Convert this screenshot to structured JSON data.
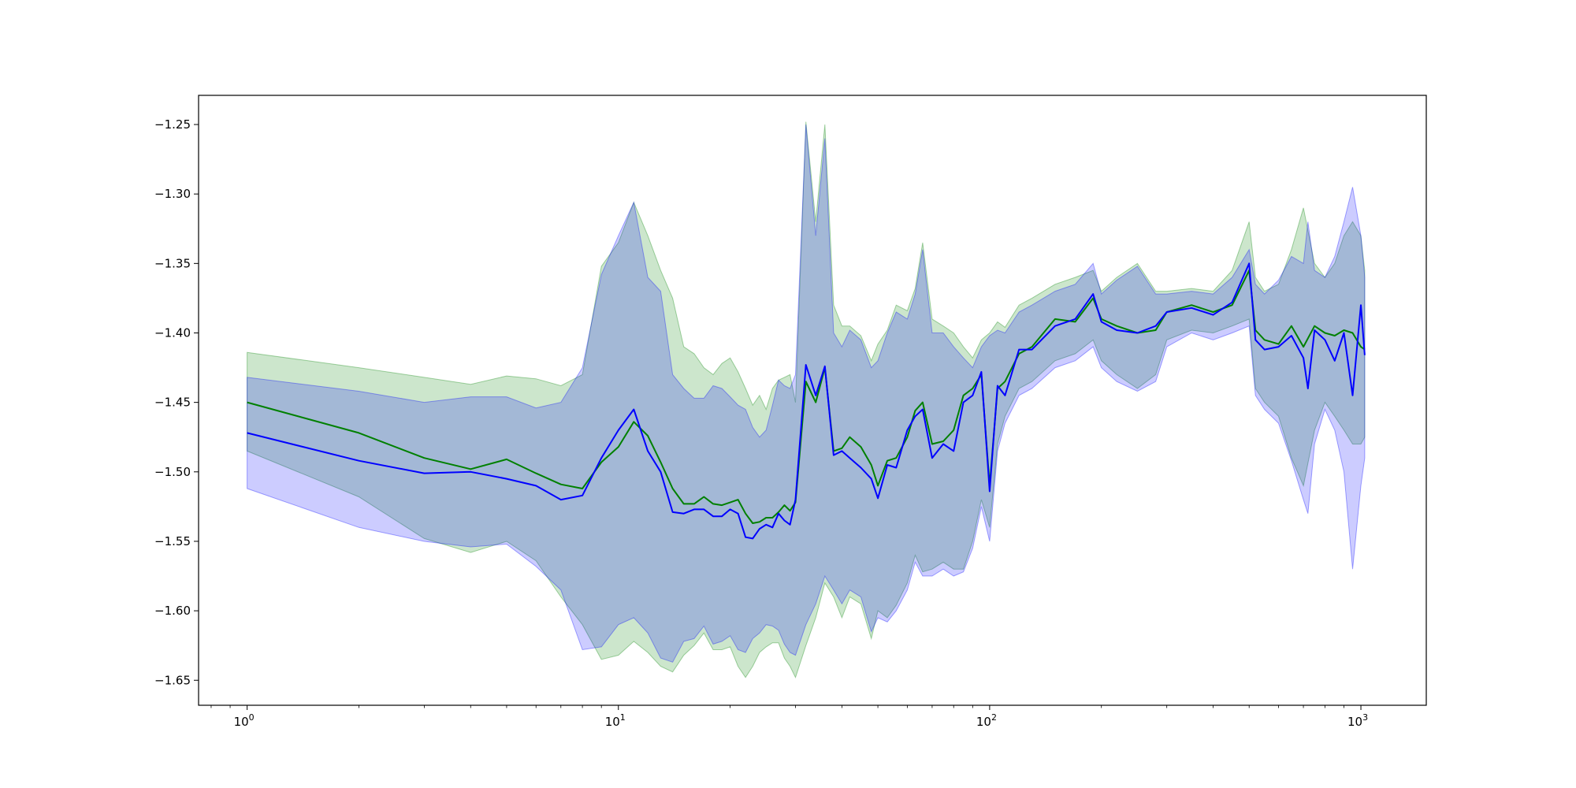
{
  "chart_data": {
    "type": "line",
    "title": "",
    "xlabel": "",
    "ylabel": "",
    "x_scale": "log",
    "xlim": [
      0.74,
      1500
    ],
    "ylim": [
      -1.668,
      -1.229
    ],
    "grid": false,
    "legend": "none",
    "x_ticks": [
      {
        "base": "10",
        "exp": "0",
        "value": 1
      },
      {
        "base": "10",
        "exp": "1",
        "value": 10
      },
      {
        "base": "10",
        "exp": "2",
        "value": 100
      },
      {
        "base": "10",
        "exp": "3",
        "value": 1000
      }
    ],
    "y_ticks": [
      {
        "label": "−1.25",
        "value": -1.25
      },
      {
        "label": "−1.30",
        "value": -1.3
      },
      {
        "label": "−1.35",
        "value": -1.35
      },
      {
        "label": "−1.40",
        "value": -1.4
      },
      {
        "label": "−1.45",
        "value": -1.45
      },
      {
        "label": "−1.50",
        "value": -1.5
      },
      {
        "label": "−1.55",
        "value": -1.55
      },
      {
        "label": "−1.60",
        "value": -1.6
      },
      {
        "label": "−1.65",
        "value": -1.65
      }
    ],
    "series": [
      {
        "color": "#008000",
        "band_color": "#008000",
        "band_opacity": 0.2,
        "x": [
          1,
          2,
          3,
          4,
          5,
          6,
          7,
          8,
          9,
          10,
          11,
          12,
          13,
          14,
          15,
          16,
          17,
          18,
          19,
          20,
          21,
          22,
          23,
          24,
          25,
          26,
          27,
          28,
          29,
          30,
          32,
          34,
          36,
          38,
          40,
          42,
          45,
          48,
          50,
          53,
          56,
          60,
          63,
          66,
          70,
          75,
          80,
          85,
          90,
          95,
          100,
          105,
          110,
          120,
          130,
          150,
          170,
          190,
          200,
          220,
          250,
          280,
          300,
          350,
          400,
          450,
          500,
          520,
          550,
          600,
          650,
          700,
          750,
          800,
          850,
          900,
          950,
          1000,
          1024
        ],
        "y": [
          -1.45,
          -1.472,
          -1.49,
          -1.498,
          -1.491,
          -1.501,
          -1.509,
          -1.512,
          -1.493,
          -1.482,
          -1.464,
          -1.474,
          -1.493,
          -1.512,
          -1.523,
          -1.523,
          -1.518,
          -1.523,
          -1.524,
          -1.522,
          -1.52,
          -1.53,
          -1.537,
          -1.536,
          -1.533,
          -1.533,
          -1.529,
          -1.524,
          -1.528,
          -1.522,
          -1.435,
          -1.45,
          -1.425,
          -1.485,
          -1.483,
          -1.475,
          -1.482,
          -1.495,
          -1.51,
          -1.492,
          -1.49,
          -1.475,
          -1.456,
          -1.45,
          -1.48,
          -1.478,
          -1.47,
          -1.445,
          -1.44,
          -1.43,
          -1.51,
          -1.44,
          -1.435,
          -1.415,
          -1.41,
          -1.39,
          -1.392,
          -1.375,
          -1.39,
          -1.395,
          -1.4,
          -1.398,
          -1.385,
          -1.38,
          -1.385,
          -1.38,
          -1.355,
          -1.398,
          -1.405,
          -1.408,
          -1.395,
          -1.41,
          -1.395,
          -1.4,
          -1.402,
          -1.398,
          -1.4,
          -1.41,
          -1.412
        ],
        "upper": [
          -1.414,
          -1.425,
          -1.432,
          -1.437,
          -1.431,
          -1.433,
          -1.438,
          -1.43,
          -1.352,
          -1.335,
          -1.306,
          -1.33,
          -1.355,
          -1.375,
          -1.41,
          -1.415,
          -1.425,
          -1.43,
          -1.422,
          -1.418,
          -1.428,
          -1.44,
          -1.452,
          -1.445,
          -1.455,
          -1.44,
          -1.434,
          -1.432,
          -1.43,
          -1.45,
          -1.248,
          -1.32,
          -1.25,
          -1.38,
          -1.395,
          -1.395,
          -1.402,
          -1.42,
          -1.408,
          -1.398,
          -1.38,
          -1.384,
          -1.368,
          -1.335,
          -1.39,
          -1.395,
          -1.4,
          -1.41,
          -1.418,
          -1.405,
          -1.4,
          -1.392,
          -1.396,
          -1.38,
          -1.375,
          -1.365,
          -1.36,
          -1.355,
          -1.37,
          -1.36,
          -1.35,
          -1.37,
          -1.37,
          -1.368,
          -1.37,
          -1.355,
          -1.32,
          -1.36,
          -1.37,
          -1.365,
          -1.34,
          -1.31,
          -1.35,
          -1.36,
          -1.35,
          -1.33,
          -1.32,
          -1.33,
          -1.355
        ],
        "lower": [
          -1.485,
          -1.518,
          -1.548,
          -1.558,
          -1.55,
          -1.564,
          -1.59,
          -1.61,
          -1.635,
          -1.632,
          -1.622,
          -1.63,
          -1.64,
          -1.644,
          -1.632,
          -1.625,
          -1.616,
          -1.628,
          -1.628,
          -1.626,
          -1.64,
          -1.648,
          -1.64,
          -1.63,
          -1.626,
          -1.623,
          -1.623,
          -1.634,
          -1.64,
          -1.648,
          -1.625,
          -1.605,
          -1.58,
          -1.59,
          -1.605,
          -1.59,
          -1.595,
          -1.62,
          -1.6,
          -1.605,
          -1.596,
          -1.58,
          -1.56,
          -1.572,
          -1.57,
          -1.565,
          -1.57,
          -1.57,
          -1.55,
          -1.52,
          -1.54,
          -1.48,
          -1.46,
          -1.44,
          -1.435,
          -1.42,
          -1.415,
          -1.405,
          -1.42,
          -1.43,
          -1.44,
          -1.43,
          -1.405,
          -1.398,
          -1.4,
          -1.395,
          -1.39,
          -1.44,
          -1.45,
          -1.46,
          -1.49,
          -1.51,
          -1.47,
          -1.45,
          -1.46,
          -1.47,
          -1.48,
          -1.48,
          -1.475
        ]
      },
      {
        "color": "#0000ff",
        "band_color": "#0000ff",
        "band_opacity": 0.2,
        "x": [
          1,
          2,
          3,
          4,
          5,
          6,
          7,
          8,
          9,
          10,
          11,
          12,
          13,
          14,
          15,
          16,
          17,
          18,
          19,
          20,
          21,
          22,
          23,
          24,
          25,
          26,
          27,
          28,
          29,
          30,
          32,
          34,
          36,
          38,
          40,
          42,
          45,
          48,
          50,
          53,
          56,
          60,
          63,
          66,
          70,
          75,
          80,
          85,
          90,
          95,
          100,
          105,
          110,
          120,
          130,
          150,
          170,
          190,
          200,
          220,
          250,
          280,
          300,
          350,
          400,
          450,
          500,
          520,
          550,
          600,
          650,
          700,
          720,
          750,
          800,
          850,
          900,
          950,
          1000,
          1024
        ],
        "y": [
          -1.472,
          -1.492,
          -1.501,
          -1.5,
          -1.505,
          -1.51,
          -1.52,
          -1.517,
          -1.49,
          -1.47,
          -1.455,
          -1.485,
          -1.5,
          -1.529,
          -1.53,
          -1.527,
          -1.527,
          -1.532,
          -1.532,
          -1.527,
          -1.53,
          -1.547,
          -1.548,
          -1.541,
          -1.538,
          -1.54,
          -1.53,
          -1.535,
          -1.538,
          -1.52,
          -1.423,
          -1.445,
          -1.424,
          -1.488,
          -1.485,
          -1.49,
          -1.497,
          -1.505,
          -1.519,
          -1.495,
          -1.497,
          -1.47,
          -1.46,
          -1.455,
          -1.49,
          -1.48,
          -1.485,
          -1.45,
          -1.445,
          -1.428,
          -1.514,
          -1.438,
          -1.445,
          -1.412,
          -1.412,
          -1.395,
          -1.39,
          -1.372,
          -1.392,
          -1.398,
          -1.4,
          -1.395,
          -1.385,
          -1.382,
          -1.387,
          -1.378,
          -1.35,
          -1.405,
          -1.412,
          -1.41,
          -1.402,
          -1.418,
          -1.44,
          -1.398,
          -1.405,
          -1.42,
          -1.4,
          -1.445,
          -1.38,
          -1.416
        ],
        "upper": [
          -1.432,
          -1.442,
          -1.45,
          -1.446,
          -1.446,
          -1.454,
          -1.45,
          -1.425,
          -1.358,
          -1.33,
          -1.306,
          -1.36,
          -1.37,
          -1.43,
          -1.44,
          -1.447,
          -1.447,
          -1.438,
          -1.44,
          -1.446,
          -1.452,
          -1.455,
          -1.468,
          -1.475,
          -1.47,
          -1.452,
          -1.434,
          -1.438,
          -1.44,
          -1.43,
          -1.25,
          -1.33,
          -1.26,
          -1.4,
          -1.41,
          -1.398,
          -1.405,
          -1.425,
          -1.42,
          -1.4,
          -1.385,
          -1.39,
          -1.372,
          -1.34,
          -1.4,
          -1.4,
          -1.41,
          -1.418,
          -1.425,
          -1.41,
          -1.402,
          -1.398,
          -1.4,
          -1.385,
          -1.38,
          -1.37,
          -1.365,
          -1.35,
          -1.372,
          -1.362,
          -1.352,
          -1.372,
          -1.372,
          -1.37,
          -1.372,
          -1.36,
          -1.34,
          -1.365,
          -1.372,
          -1.362,
          -1.345,
          -1.35,
          -1.32,
          -1.355,
          -1.36,
          -1.345,
          -1.32,
          -1.295,
          -1.33,
          -1.36
        ],
        "lower": [
          -1.512,
          -1.54,
          -1.55,
          -1.554,
          -1.552,
          -1.568,
          -1.585,
          -1.628,
          -1.626,
          -1.61,
          -1.605,
          -1.616,
          -1.634,
          -1.637,
          -1.622,
          -1.62,
          -1.611,
          -1.624,
          -1.622,
          -1.618,
          -1.628,
          -1.63,
          -1.62,
          -1.616,
          -1.61,
          -1.611,
          -1.614,
          -1.624,
          -1.63,
          -1.632,
          -1.61,
          -1.595,
          -1.575,
          -1.585,
          -1.595,
          -1.585,
          -1.59,
          -1.615,
          -1.605,
          -1.608,
          -1.6,
          -1.585,
          -1.565,
          -1.575,
          -1.575,
          -1.57,
          -1.575,
          -1.572,
          -1.555,
          -1.525,
          -1.55,
          -1.485,
          -1.465,
          -1.445,
          -1.44,
          -1.425,
          -1.42,
          -1.41,
          -1.425,
          -1.435,
          -1.442,
          -1.435,
          -1.41,
          -1.4,
          -1.405,
          -1.4,
          -1.395,
          -1.445,
          -1.455,
          -1.465,
          -1.492,
          -1.52,
          -1.53,
          -1.48,
          -1.455,
          -1.47,
          -1.5,
          -1.57,
          -1.51,
          -1.49
        ]
      }
    ]
  }
}
